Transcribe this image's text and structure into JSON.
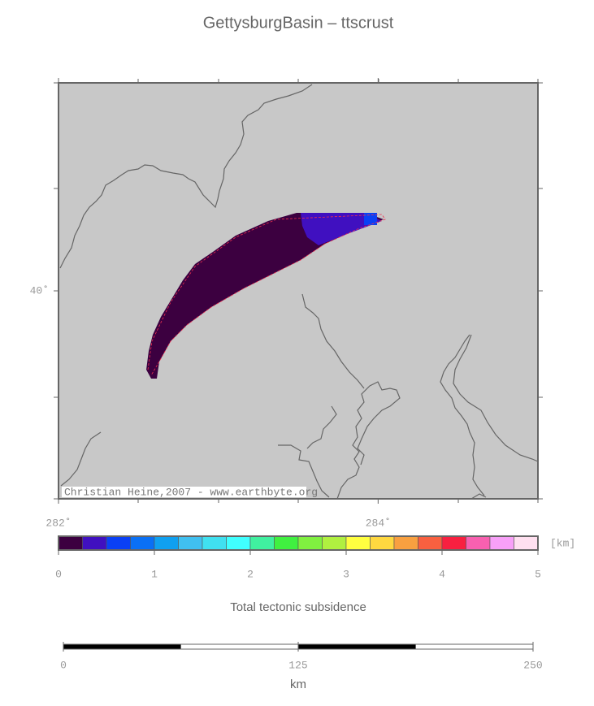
{
  "title": "GettysburgBasin – ttscrust",
  "map": {
    "lonlim": [
      282,
      285
    ],
    "latlim": [
      39,
      41
    ],
    "lon_ticks": [
      {
        "value": 282,
        "label": "282˚"
      },
      {
        "value": 284,
        "label": "284˚"
      }
    ],
    "lat_ticks": [
      {
        "value": 40,
        "label": "40˚"
      }
    ],
    "credit": "Christian Heine,2007 - www.earthbyte.org"
  },
  "colorbar": {
    "range": [
      0,
      5
    ],
    "ticks": [
      0,
      1,
      2,
      3,
      4,
      5
    ],
    "unit": "[km]",
    "label": "Total tectonic subsidence",
    "colors": [
      "#3c0040",
      "#4010c0",
      "#0a40f5",
      "#0a70f5",
      "#10a0f0",
      "#40c0f0",
      "#40e0f0",
      "#40ffff",
      "#40f0a0",
      "#40f040",
      "#80f040",
      "#b0f040",
      "#ffff40",
      "#ffd840",
      "#f8a040",
      "#f86040",
      "#f82040",
      "#f860b0",
      "#f8a0f8",
      "#ffe0f0"
    ]
  },
  "scalebar": {
    "range": [
      0,
      250
    ],
    "ticks": [
      0,
      125,
      250
    ],
    "unit": "km"
  }
}
